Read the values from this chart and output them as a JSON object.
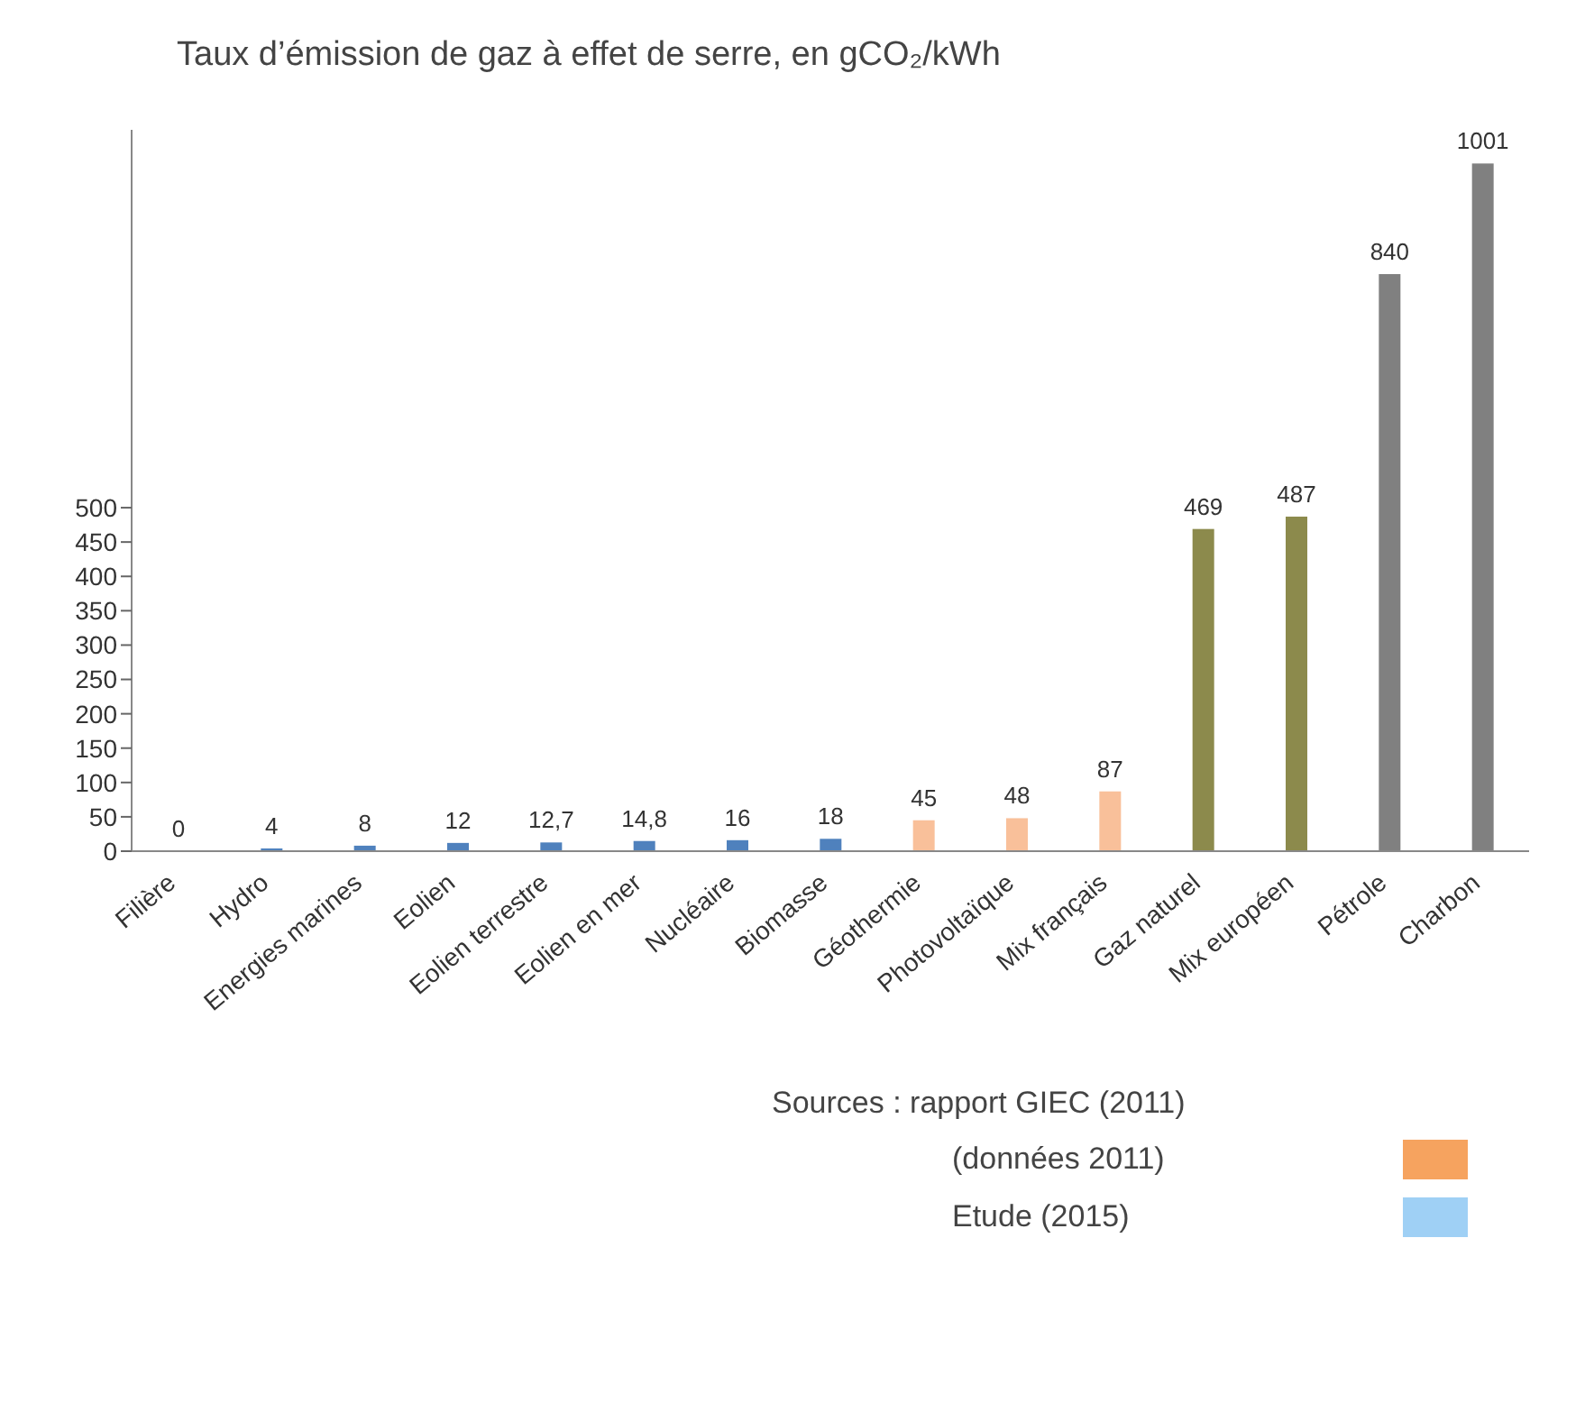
{
  "chart_data": {
    "type": "bar",
    "title": "Taux d’émission de gaz à effet de serre, en gCO₂/kWh",
    "categories": [
      "Filière",
      "Hydro",
      "Energies marines",
      "Eolien",
      "Eolien terrestre",
      "Eolien en mer",
      "Nucléaire",
      "Biomasse",
      "Géothermie",
      "Photovoltaïque",
      "Mix français",
      "Gaz naturel",
      "Mix européen",
      "Pétrole",
      "Charbon"
    ],
    "values": [
      0,
      4,
      8,
      12,
      12.7,
      14.8,
      16,
      18,
      45,
      48,
      87,
      469,
      487,
      840,
      1001
    ],
    "value_labels": [
      "0",
      "4",
      "8",
      "12",
      "12,7",
      "14,8",
      "16",
      "18",
      "45",
      "48",
      "87",
      "469",
      "487",
      "840",
      "1001"
    ],
    "colors": [
      "#4f81bd",
      "#4f81bd",
      "#4f81bd",
      "#4f81bd",
      "#4f81bd",
      "#4f81bd",
      "#4f81bd",
      "#4f81bd",
      "#f9c09a",
      "#f9c09a",
      "#f9c09a",
      "#8c8a4c",
      "#8c8a4c",
      "#808080",
      "#808080"
    ],
    "ylim": [
      0,
      1050
    ],
    "yticks": [
      0,
      50,
      100,
      150,
      200,
      250,
      300,
      350,
      400,
      450,
      500
    ],
    "grid": false,
    "annotations": [
      "Sources : rapport GIEC (2011)",
      "(données 2011)",
      "Etude (2015)"
    ]
  }
}
